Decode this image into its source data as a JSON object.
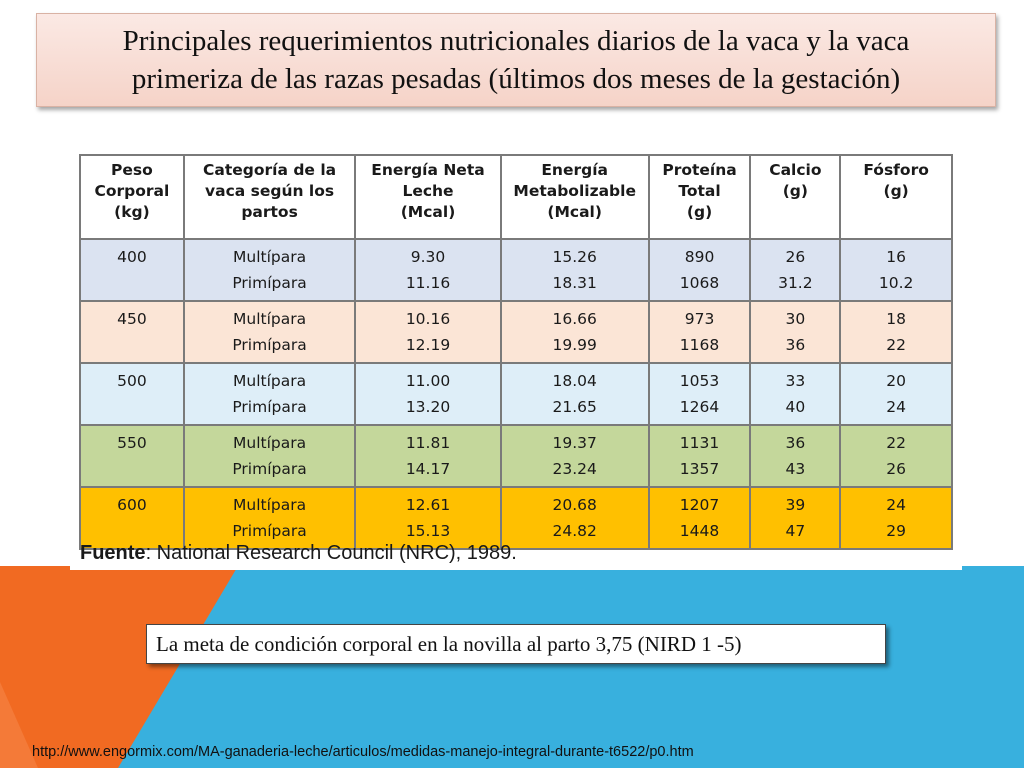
{
  "colors": {
    "orange": "#f16a22",
    "blue": "#38b0de",
    "title_bg": "#f5d3c8",
    "row_400": "#dbe3f1",
    "row_450": "#fbe5d6",
    "row_500": "#deeef8",
    "row_550": "#c4d79b",
    "row_600": "#ffc000"
  },
  "title": {
    "line1": "Principales requerimientos nutricionales diarios de la vaca y la vaca",
    "line2": "primeriza de las razas pesadas (últimos dos meses de la gestación)"
  },
  "table": {
    "headers": [
      [
        "Peso",
        "Corporal",
        "(kg)"
      ],
      [
        "Categoría de la",
        "vaca según los",
        "partos"
      ],
      [
        "Energía Neta",
        "Leche",
        "(Mcal)"
      ],
      [
        "Energía",
        "Metabolizable",
        "(Mcal)"
      ],
      [
        "Proteína",
        "Total",
        "(g)"
      ],
      [
        "Calcio",
        "(g)"
      ],
      [
        "Fósforo",
        "(g)"
      ]
    ],
    "groups": [
      {
        "weight": "400",
        "cat": [
          "Multípara",
          "Primípara"
        ],
        "enl": [
          "9.30",
          "11.16"
        ],
        "em": [
          "15.26",
          "18.31"
        ],
        "prot": [
          "890",
          "1068"
        ],
        "ca": [
          "26",
          "31.2"
        ],
        "p": [
          "16",
          "10.2"
        ]
      },
      {
        "weight": "450",
        "cat": [
          "Multípara",
          "Primípara"
        ],
        "enl": [
          "10.16",
          "12.19"
        ],
        "em": [
          "16.66",
          "19.99"
        ],
        "prot": [
          "973",
          "1168"
        ],
        "ca": [
          "30",
          "36"
        ],
        "p": [
          "18",
          "22"
        ]
      },
      {
        "weight": "500",
        "cat": [
          "Multípara",
          "Primípara"
        ],
        "enl": [
          "11.00",
          "13.20"
        ],
        "em": [
          "18.04",
          "21.65"
        ],
        "prot": [
          "1053",
          "1264"
        ],
        "ca": [
          "33",
          "40"
        ],
        "p": [
          "20",
          "24"
        ]
      },
      {
        "weight": "550",
        "cat": [
          "Multípara",
          "Primípara"
        ],
        "enl": [
          "11.81",
          "14.17"
        ],
        "em": [
          "19.37",
          "23.24"
        ],
        "prot": [
          "1131",
          "1357"
        ],
        "ca": [
          "36",
          "43"
        ],
        "p": [
          "22",
          "26"
        ]
      },
      {
        "weight": "600",
        "cat": [
          "Multípara",
          "Primípara"
        ],
        "enl": [
          "12.61",
          "15.13"
        ],
        "em": [
          "20.68",
          "24.82"
        ],
        "prot": [
          "1207",
          "1448"
        ],
        "ca": [
          "39",
          "47"
        ],
        "p": [
          "24",
          "29"
        ]
      }
    ]
  },
  "source": {
    "label": "Fuente",
    "text": ": National Research Council (NRC), 1989."
  },
  "note": "La meta de condición corporal en la novilla al parto 3,75 (NIRD 1 -5)",
  "url": "http://www.engormix.com/MA-ganaderia-leche/articulos/medidas-manejo-integral-durante-t6522/p0.htm"
}
